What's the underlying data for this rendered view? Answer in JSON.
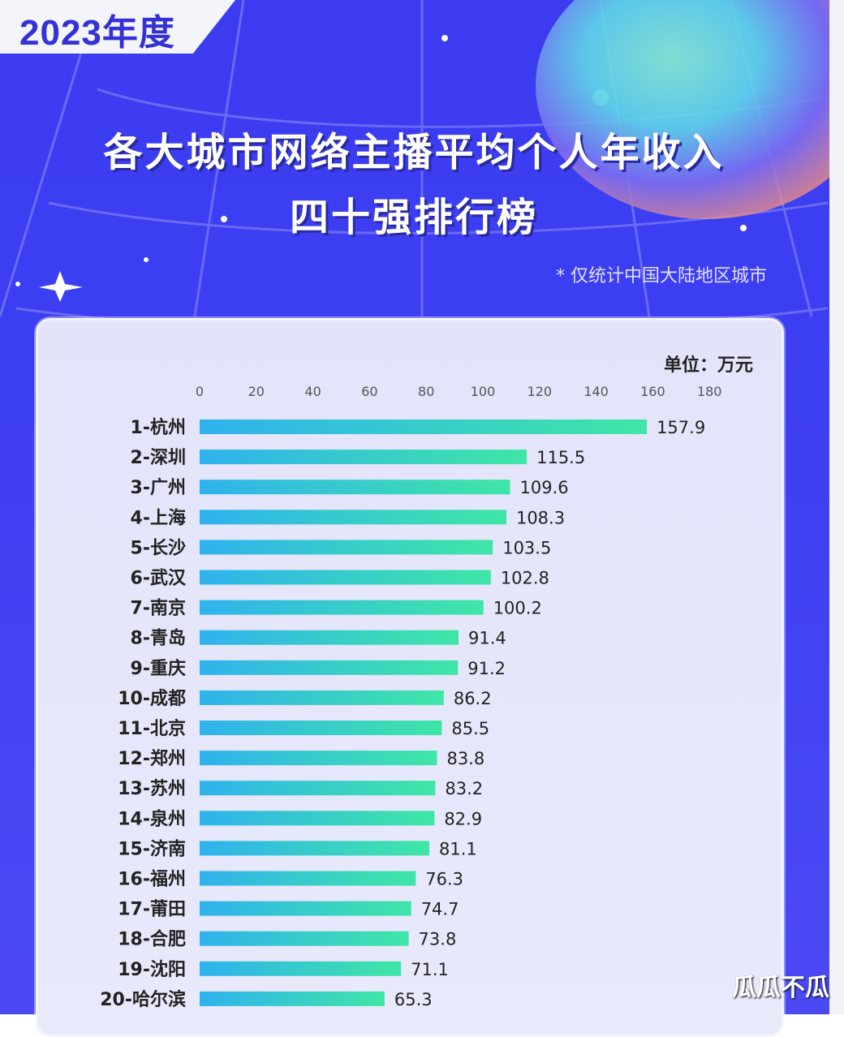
{
  "header": {
    "year": "2023年度",
    "title_line1": "各大城市网络主播平均个人年收入",
    "title_line2": "四十强排行榜",
    "note": "* 仅统计中国大陆地区城市",
    "watermark": "瓜瓜不瓜"
  },
  "colors": {
    "background": "#3d3ff2",
    "panel": "#e5e6fa",
    "bar_start": "#2fb2ee",
    "bar_end": "#3fe6a6"
  },
  "chart_data": {
    "type": "bar",
    "orientation": "horizontal",
    "unit_label": "单位：万元",
    "xticks": [
      "0",
      "20",
      "40",
      "60",
      "80",
      "100",
      "120",
      "140",
      "160",
      "180"
    ],
    "xlim": [
      0,
      180
    ],
    "categories": [
      "1-杭州",
      "2-深圳",
      "3-广州",
      "4-上海",
      "5-长沙",
      "6-武汉",
      "7-南京",
      "8-青岛",
      "9-重庆",
      "10-成都",
      "11-北京",
      "12-郑州",
      "13-苏州",
      "14-泉州",
      "15-济南",
      "16-福州",
      "17-莆田",
      "18-合肥",
      "19-沈阳",
      "20-哈尔滨"
    ],
    "values": [
      157.9,
      115.5,
      109.6,
      108.3,
      103.5,
      102.8,
      100.2,
      91.4,
      91.2,
      86.2,
      85.5,
      83.8,
      83.2,
      82.9,
      81.1,
      76.3,
      74.7,
      73.8,
      71.1,
      65.3
    ],
    "value_labels": [
      "157.9",
      "115.5",
      "109.6",
      "108.3",
      "103.5",
      "102.8",
      "100.2",
      "91.4",
      "91.2",
      "86.2",
      "85.5",
      "83.8",
      "83.2",
      "82.9",
      "81.1",
      "76.3",
      "74.7",
      "73.8",
      "71.1",
      "65.3"
    ]
  }
}
